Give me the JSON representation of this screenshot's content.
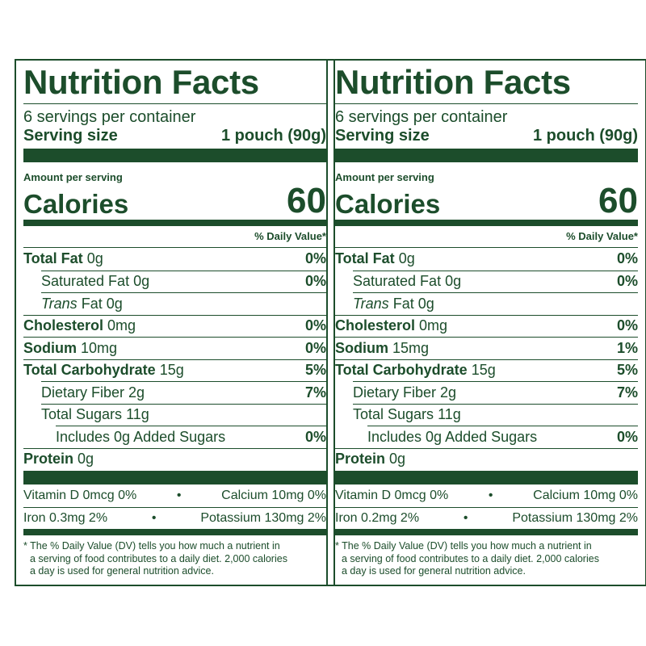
{
  "labels": [
    {
      "title": "Nutrition Facts",
      "servings": "6 servings per container",
      "serving_size_label": "Serving size",
      "serving_size": "1 pouch (90g)",
      "amount_per_serving": "Amount per serving",
      "calories_label": "Calories",
      "calories": "60",
      "dv_header": "% Daily Value*",
      "nutrients": [
        {
          "name": "Total Fat",
          "amount": "0g",
          "dv": "0%",
          "sub": [
            {
              "name": "Saturated Fat",
              "amount": "0g",
              "dv": "0%"
            },
            {
              "prefix": "Trans",
              "name": "Fat",
              "amount": "0g"
            }
          ]
        },
        {
          "name": "Cholesterol",
          "amount": "0mg",
          "dv": "0%"
        },
        {
          "name": "Sodium",
          "amount": "10mg",
          "dv": "0%"
        },
        {
          "name": "Total Carbohydrate",
          "amount": "15g",
          "dv": "5%",
          "sub": [
            {
              "name": "Dietary Fiber",
              "amount": "2g",
              "dv": "7%"
            },
            {
              "name": "Total Sugars",
              "amount": "11g",
              "sub": [
                {
                  "name": "Includes 0g Added Sugars",
                  "dv": "0%"
                }
              ]
            }
          ]
        },
        {
          "name": "Protein",
          "amount": "0g"
        }
      ],
      "vitamins": [
        [
          "Vitamin D 0mcg 0%",
          "Calcium 10mg 0%"
        ],
        [
          "Iron 0.3mg 2%",
          "Potassium 130mg 2%"
        ]
      ],
      "footnote": [
        "* The % Daily Value (DV) tells you how much a nutrient in",
        "a serving of food contributes to a daily diet. 2,000 calories",
        "a day is used for general nutrition advice."
      ]
    },
    {
      "title": "Nutrition Facts",
      "servings": "6 servings per container",
      "serving_size_label": "Serving size",
      "serving_size": "1 pouch (90g)",
      "amount_per_serving": "Amount per serving",
      "calories_label": "Calories",
      "calories": "60",
      "dv_header": "% Daily Value*",
      "nutrients": [
        {
          "name": "Total Fat",
          "amount": "0g",
          "dv": "0%",
          "sub": [
            {
              "name": "Saturated Fat",
              "amount": "0g",
              "dv": "0%"
            },
            {
              "prefix": "Trans",
              "name": "Fat",
              "amount": "0g"
            }
          ]
        },
        {
          "name": "Cholesterol",
          "amount": "0mg",
          "dv": "0%"
        },
        {
          "name": "Sodium",
          "amount": "15mg",
          "dv": "1%"
        },
        {
          "name": "Total Carbohydrate",
          "amount": "15g",
          "dv": "5%",
          "sub": [
            {
              "name": "Dietary Fiber",
              "amount": "2g",
              "dv": "7%"
            },
            {
              "name": "Total Sugars",
              "amount": "11g",
              "sub": [
                {
                  "name": "Includes 0g Added Sugars",
                  "dv": "0%"
                }
              ]
            }
          ]
        },
        {
          "name": "Protein",
          "amount": "0g"
        }
      ],
      "vitamins": [
        [
          "Vitamin D 0mcg 0%",
          "Calcium 10mg 0%"
        ],
        [
          "Iron 0.2mg 2%",
          "Potassium 130mg 2%"
        ]
      ],
      "footnote": [
        "* The % Daily Value (DV) tells you how much a nutrient in",
        "a serving of food contributes to a daily diet. 2,000 calories",
        "a day is used for general nutrition advice."
      ]
    }
  ]
}
